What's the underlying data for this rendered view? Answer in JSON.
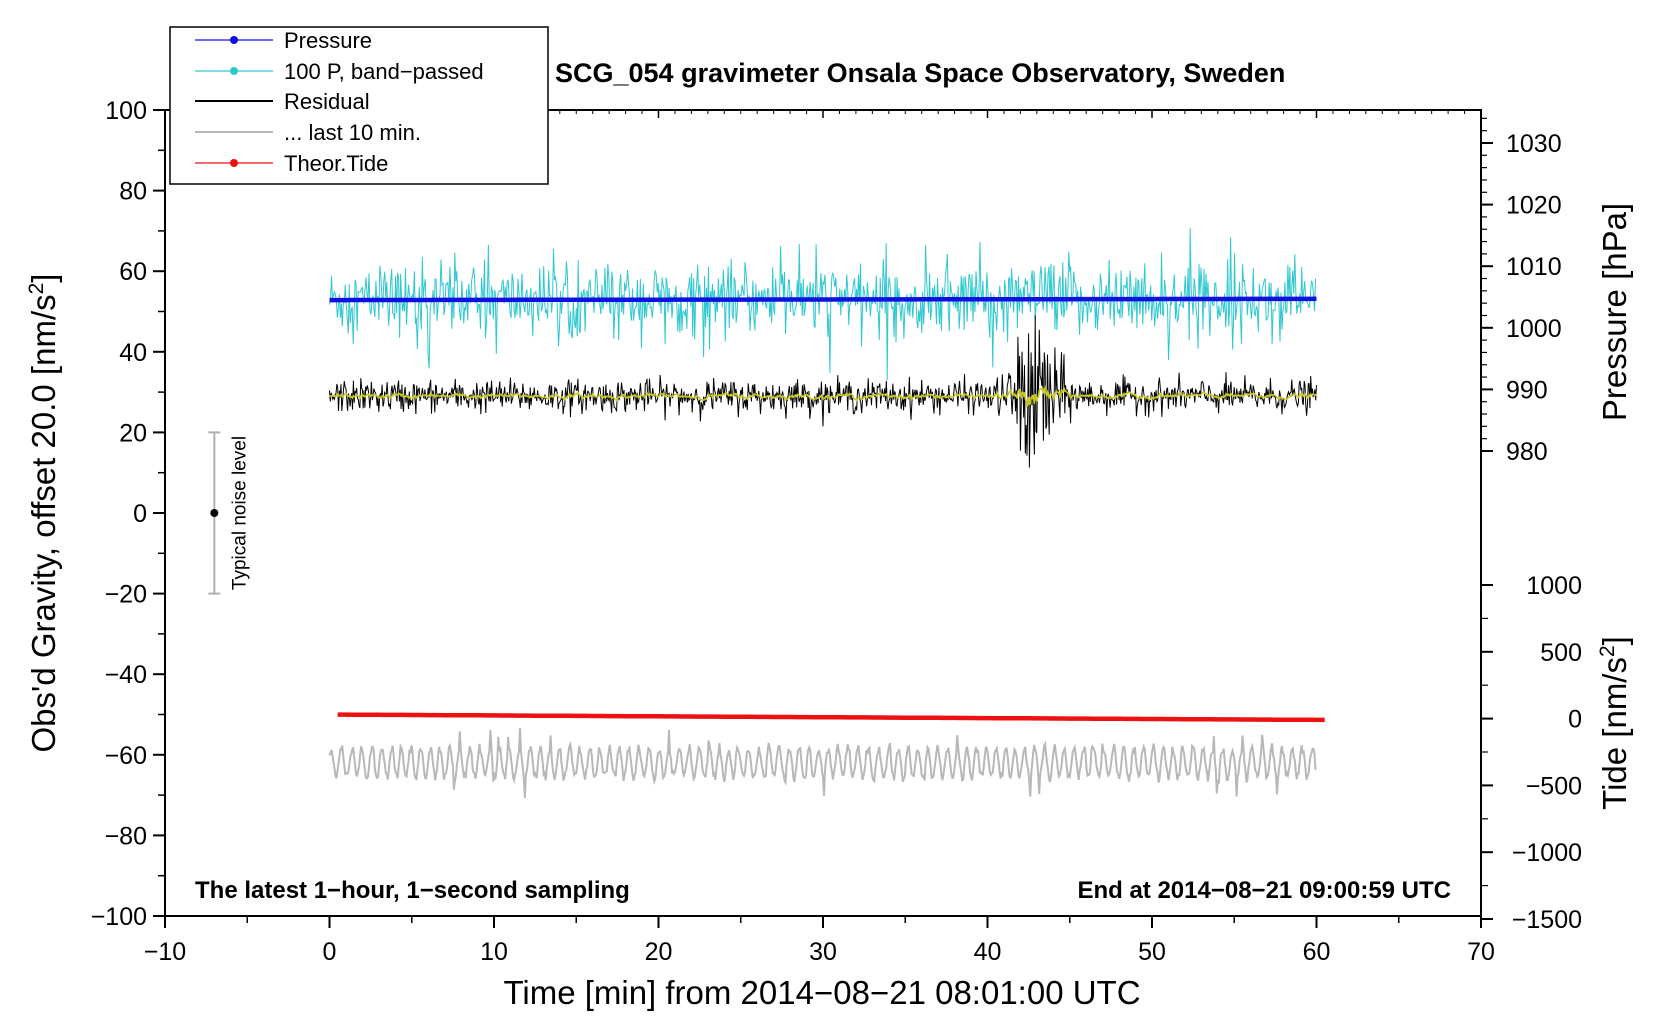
{
  "colors": {
    "pressure": "#1010e0",
    "band_passed": "#30c8d0",
    "residual": "#000000",
    "last10": "#b8b8b8",
    "tide": "#ee1111",
    "smoothed": "#c8c820",
    "noise_bar": "#b0b0b0"
  },
  "chart_data": {
    "type": "line",
    "title": "SCG_054 gravimeter Onsala Space Observatory, Sweden",
    "xlabel": "Time [min] from 2014−08−21 08:01:00 UTC",
    "ylabel_left": "Obs'd Gravity, offset 20.0 [nm/s",
    "ylabel_left_sup": "2",
    "ylabel_left_end": "]",
    "ylabel_right_pressure": "Pressure [hPa]",
    "ylabel_right_tide": "Tide [nm/s",
    "ylabel_right_tide_sup": "2",
    "ylabel_right_tide_end": "]",
    "xlim": [
      -10,
      70
    ],
    "ylim": [
      -100,
      100
    ],
    "pressure_axis_range": [
      980,
      1030
    ],
    "tide_axis_range": [
      -1500,
      1000
    ],
    "x_ticks": [
      "−10",
      "0",
      "10",
      "20",
      "30",
      "40",
      "50",
      "60",
      "70"
    ],
    "y_ticks": [
      "100",
      "80",
      "60",
      "40",
      "20",
      "0",
      "−20",
      "−40",
      "−60",
      "−80",
      "−100"
    ],
    "pressure_ticks": [
      "1030",
      "1020",
      "1010",
      "1000",
      "990",
      "980"
    ],
    "tide_ticks": [
      "1000",
      "500",
      "0",
      "−500",
      "−1000",
      "−1500"
    ],
    "note_left": "The latest 1−hour, 1−second sampling",
    "note_right": "End at 2014−08−21 09:00:59 UTC",
    "noise_label": "Typical noise level",
    "noise_bar": {
      "x": -7,
      "center": 0,
      "low": -20,
      "high": 20
    },
    "grid": false,
    "legend_position": "top-left",
    "legend": [
      {
        "label": "Pressure"
      },
      {
        "label": "100 P, band−passed"
      },
      {
        "label": "Residual"
      },
      {
        "label": "... last 10 min."
      },
      {
        "label": "Theor.Tide"
      }
    ],
    "series": [
      {
        "name": "Pressure",
        "axis": "pressure_hPa",
        "x": [
          0,
          60
        ],
        "values": [
          1004.5,
          1004.7
        ]
      },
      {
        "name": "100 P, band−passed",
        "axis": "gravity",
        "x_range": [
          0,
          60
        ],
        "mean": 53,
        "range": [
          33,
          71
        ]
      },
      {
        "name": "Residual",
        "axis": "gravity",
        "x_range": [
          0,
          60
        ],
        "mean": 29,
        "range": [
          10,
          49
        ],
        "burst_at_min": 43
      },
      {
        "name": "... last 10 min.",
        "axis": "gravity",
        "x_range": [
          0,
          60
        ],
        "mean": -62,
        "range": [
          -71,
          -51
        ]
      },
      {
        "name": "Theor.Tide",
        "axis": "tide_nm_s2",
        "x": [
          0.5,
          60.5
        ],
        "values": [
          30,
          -10
        ]
      }
    ]
  }
}
